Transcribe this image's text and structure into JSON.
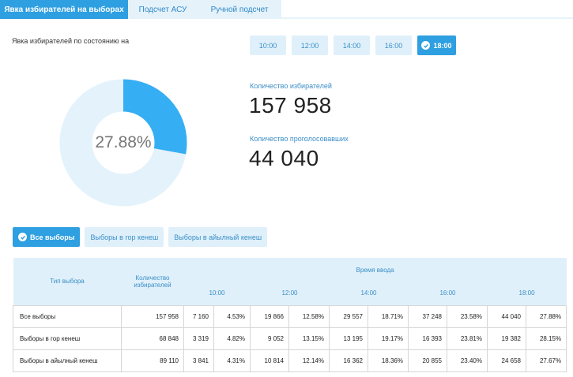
{
  "tabs": [
    {
      "label": "Явка избирателей на выборах"
    },
    {
      "label": "Подсчет АСУ"
    },
    {
      "label": "Ручной подсчет"
    }
  ],
  "turnout_label": "Явка избирателей по состоянию на",
  "times": [
    "10:00",
    "12:00",
    "14:00",
    "16:00",
    "18:00"
  ],
  "selected_time": "18:00",
  "donut": {
    "percent": 27.88,
    "label": "27.88%",
    "fill_color": "#35aef3",
    "track_color": "#e3f2fb"
  },
  "stats": {
    "voters_label": "Количество избирателей",
    "voters_value": "157 958",
    "voted_label": "Количество проголосовавших",
    "voted_value": "44 040"
  },
  "filters": [
    "Все выборы",
    "Выборы в гор кенеш",
    "Выборы в айылный кенеш"
  ],
  "table": {
    "col_type": "Тип выбора",
    "col_voters": "Количество избирателей",
    "col_time": "Время ввода",
    "times": [
      "10:00",
      "12:00",
      "14:00",
      "16:00",
      "18:00"
    ],
    "rows": [
      {
        "name": "Все выборы",
        "voters": "157 958",
        "cells": [
          "7 160",
          "4.53%",
          "19 866",
          "12.58%",
          "29 557",
          "18.71%",
          "37 248",
          "23.58%",
          "44 040",
          "27.88%"
        ]
      },
      {
        "name": "Выборы в гор кенеш",
        "voters": "68 848",
        "cells": [
          "3 319",
          "4.82%",
          "9 052",
          "13.15%",
          "13 195",
          "19.17%",
          "16 393",
          "23.81%",
          "19 382",
          "28.15%"
        ]
      },
      {
        "name": "Выборы в айылный кенеш",
        "voters": "89 110",
        "cells": [
          "3 841",
          "4.31%",
          "10 814",
          "12.14%",
          "16 362",
          "18.36%",
          "20 855",
          "23.40%",
          "24 658",
          "27.67%"
        ]
      }
    ]
  }
}
